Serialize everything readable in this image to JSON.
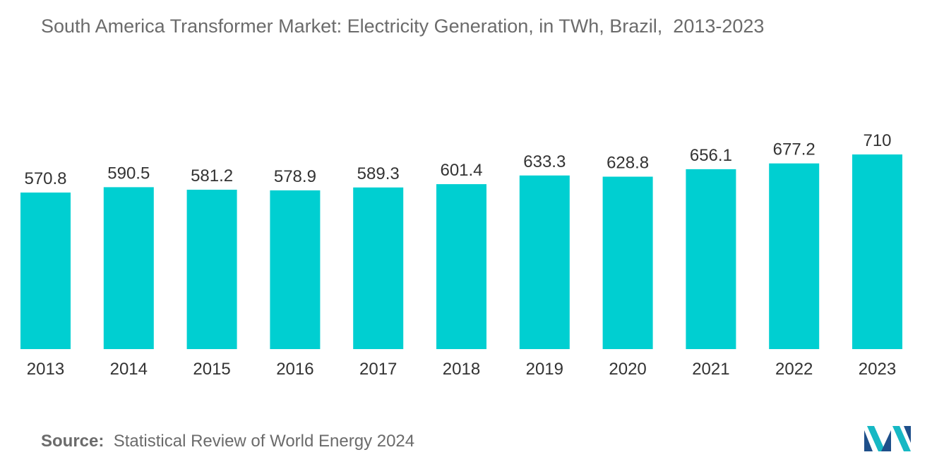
{
  "chart_data": {
    "type": "bar",
    "title": "South America Transformer Market: Electricity Generation, in TWh, Brazil,  2013-2023",
    "categories": [
      "2013",
      "2014",
      "2015",
      "2016",
      "2017",
      "2018",
      "2019",
      "2020",
      "2021",
      "2022",
      "2023"
    ],
    "values": [
      570.8,
      590.5,
      581.2,
      578.9,
      589.3,
      601.4,
      633.3,
      628.8,
      656.1,
      677.2,
      710
    ],
    "value_labels": [
      "570.8",
      "590.5",
      "581.2",
      "578.9",
      "589.3",
      "601.4",
      "633.3",
      "628.8",
      "656.1",
      "677.2",
      "710"
    ],
    "xlabel": "",
    "ylabel": "",
    "ylim": [
      0,
      710
    ],
    "grid": false,
    "legend": "none",
    "bar_color": "#00cfd1"
  },
  "source": {
    "key": "Source:",
    "text": "Statistical Review of World Energy 2024"
  },
  "logo": {
    "icon": "mordor-intelligence-logo-icon",
    "colors": [
      "#1e4f8a",
      "#16b8c4"
    ]
  }
}
